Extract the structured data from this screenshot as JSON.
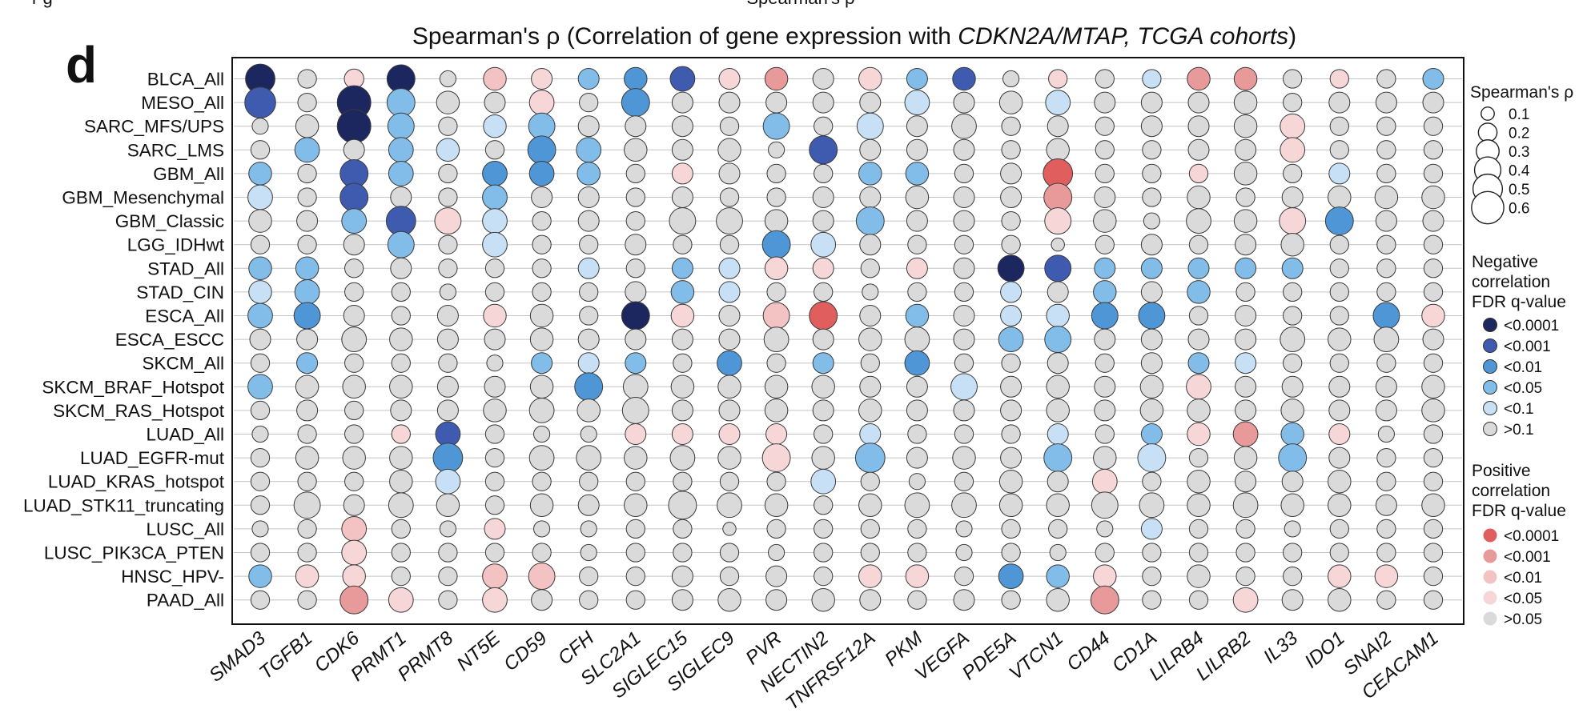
{
  "panel_letter": "d",
  "cropped_top_left": "r g",
  "cropped_top_center": "Spearman's ρ",
  "title_plain": "Spearman's ρ  (Correlation of gene expression with ",
  "title_italic": "CDKN2A/MTAP, TCGA cohorts",
  "title_close": ")",
  "size_legend": {
    "title": "Spearman's ρ",
    "items": [
      "0.1",
      "0.2",
      "0.3",
      "0.4",
      "0.5",
      "0.6"
    ],
    "values": [
      0.1,
      0.2,
      0.3,
      0.4,
      0.5,
      0.6
    ]
  },
  "neg_legend": {
    "title_lines": [
      "Negative",
      "correlation",
      "FDR q-value"
    ],
    "items": [
      "<0.0001",
      "<0.001",
      "<0.01",
      "<0.05",
      "<0.1",
      ">0.1"
    ],
    "colors": [
      "#1c2760",
      "#3f5bb0",
      "#4f96d6",
      "#82bde9",
      "#c7e0f5",
      "#dadada"
    ]
  },
  "pos_legend": {
    "title_lines": [
      "Positive",
      "correlation",
      "FDR q-value"
    ],
    "items": [
      "<0.0001",
      "<0.001",
      "<0.01",
      "<0.05",
      ">0.05"
    ],
    "colors": [
      "#e05e5e",
      "#e89a9a",
      "#f3c3c3",
      "#f6d6d6",
      "#dadada"
    ]
  },
  "chart_data": {
    "type": "bubble-matrix",
    "title": "Spearman's ρ (Correlation of gene expression with CDKN2A/MTAP, TCGA cohorts)",
    "size_encoding": "|Spearman's ρ|",
    "color_encoding": "FDR q-value bin by direction of correlation",
    "rows": [
      "BLCA_All",
      "MESO_All",
      "SARC_MFS/UPS",
      "SARC_LMS",
      "GBM_All",
      "GBM_Mesenchymal",
      "GBM_Classic",
      "LGG_IDHwt",
      "STAD_All",
      "STAD_CIN",
      "ESCA_All",
      "ESCA_ESCC",
      "SKCM_All",
      "SKCM_BRAF_Hotspot",
      "SKCM_RAS_Hotspot",
      "LUAD_All",
      "LUAD_EGFR-mut",
      "LUAD_KRAS_hotspot",
      "LUAD_STK11_truncating",
      "LUSC_All",
      "LUSC_PIK3CA_PTEN",
      "HNSC_HPV-",
      "PAAD_All"
    ],
    "columns": [
      "SMAD3",
      "TGFB1",
      "CDK6",
      "PRMT1",
      "PRMT8",
      "NT5E",
      "CD59",
      "CFH",
      "SLC2A1",
      "SIGLEC15",
      "SIGLEC9",
      "PVR",
      "NECTIN2",
      "TNFRSF12A",
      "PKM",
      "VEGFA",
      "PDE5A",
      "VTCN1",
      "CD44",
      "CD1A",
      "LILRB4",
      "LILRB2",
      "IL33",
      "IDO1",
      "SNAI2",
      "CEACAM1"
    ],
    "color_codes": {
      "n0": "negative, q<0.0001",
      "n1": "negative, q<0.001",
      "n2": "negative, q<0.01",
      "n3": "negative, q<0.05",
      "n4": "negative, q<0.1",
      "g": "not significant",
      "p0": "positive, q<0.0001",
      "p1": "positive, q<0.001",
      "p2": "positive, q<0.01",
      "p3": "positive, q<0.05"
    },
    "rho_abs": [
      [
        0.5,
        0.2,
        0.22,
        0.45,
        0.15,
        0.3,
        0.25,
        0.25,
        0.3,
        0.35,
        0.25,
        0.3,
        0.25,
        0.3,
        0.25,
        0.3,
        0.15,
        0.2,
        0.2,
        0.2,
        0.3,
        0.3,
        0.2,
        0.2,
        0.2,
        0.25
      ],
      [
        0.55,
        0.2,
        0.65,
        0.45,
        0.3,
        0.25,
        0.35,
        0.2,
        0.45,
        0.25,
        0.25,
        0.25,
        0.25,
        0.25,
        0.35,
        0.25,
        0.3,
        0.35,
        0.25,
        0.25,
        0.25,
        0.3,
        0.2,
        0.25,
        0.25,
        0.25
      ],
      [
        0.15,
        0.3,
        0.65,
        0.4,
        0.2,
        0.3,
        0.4,
        0.25,
        0.25,
        0.25,
        0.2,
        0.4,
        0.2,
        0.4,
        0.25,
        0.35,
        0.2,
        0.25,
        0.2,
        0.25,
        0.25,
        0.3,
        0.35,
        0.2,
        0.2,
        0.2
      ],
      [
        0.2,
        0.35,
        0.25,
        0.35,
        0.3,
        0.2,
        0.45,
        0.35,
        0.3,
        0.25,
        0.3,
        0.15,
        0.45,
        0.25,
        0.25,
        0.25,
        0.2,
        0.3,
        0.2,
        0.2,
        0.25,
        0.25,
        0.35,
        0.2,
        0.2,
        0.2
      ],
      [
        0.3,
        0.2,
        0.45,
        0.35,
        0.2,
        0.35,
        0.35,
        0.3,
        0.2,
        0.25,
        0.25,
        0.2,
        0.2,
        0.3,
        0.3,
        0.2,
        0.25,
        0.5,
        0.2,
        0.2,
        0.2,
        0.3,
        0.2,
        0.25,
        0.2,
        0.2
      ],
      [
        0.35,
        0.2,
        0.45,
        0.25,
        0.2,
        0.35,
        0.25,
        0.25,
        0.2,
        0.25,
        0.2,
        0.2,
        0.25,
        0.25,
        0.3,
        0.25,
        0.25,
        0.45,
        0.25,
        0.2,
        0.3,
        0.2,
        0.25,
        0.3,
        0.3,
        0.3
      ],
      [
        0.3,
        0.25,
        0.35,
        0.5,
        0.4,
        0.35,
        0.2,
        0.25,
        0.2,
        0.4,
        0.4,
        0.3,
        0.25,
        0.45,
        0.25,
        0.25,
        0.2,
        0.4,
        0.3,
        0.15,
        0.35,
        0.3,
        0.4,
        0.45,
        0.25,
        0.25
      ],
      [
        0.2,
        0.2,
        0.25,
        0.4,
        0.2,
        0.35,
        0.2,
        0.2,
        0.25,
        0.2,
        0.2,
        0.45,
        0.35,
        0.25,
        0.2,
        0.2,
        0.2,
        0.1,
        0.2,
        0.25,
        0.2,
        0.25,
        0.3,
        0.2,
        0.2,
        0.2
      ],
      [
        0.3,
        0.3,
        0.2,
        0.25,
        0.2,
        0.2,
        0.2,
        0.25,
        0.2,
        0.25,
        0.25,
        0.3,
        0.25,
        0.2,
        0.25,
        0.25,
        0.4,
        0.4,
        0.25,
        0.25,
        0.25,
        0.25,
        0.25,
        0.2,
        0.2,
        0.2
      ],
      [
        0.3,
        0.35,
        0.2,
        0.2,
        0.15,
        0.2,
        0.2,
        0.2,
        0.25,
        0.3,
        0.25,
        0.2,
        0.2,
        0.15,
        0.2,
        0.2,
        0.25,
        0.25,
        0.3,
        0.25,
        0.3,
        0.2,
        0.2,
        0.2,
        0.2,
        0.2
      ],
      [
        0.35,
        0.4,
        0.25,
        0.2,
        0.25,
        0.3,
        0.3,
        0.2,
        0.45,
        0.3,
        0.25,
        0.4,
        0.45,
        0.25,
        0.3,
        0.25,
        0.25,
        0.3,
        0.4,
        0.4,
        0.2,
        0.25,
        0.2,
        0.2,
        0.4,
        0.3
      ],
      [
        0.25,
        0.25,
        0.35,
        0.3,
        0.25,
        0.25,
        0.3,
        0.25,
        0.25,
        0.25,
        0.25,
        0.35,
        0.25,
        0.3,
        0.35,
        0.25,
        0.35,
        0.4,
        0.25,
        0.25,
        0.25,
        0.25,
        0.35,
        0.3,
        0.35,
        0.25
      ],
      [
        0.2,
        0.25,
        0.2,
        0.2,
        0.2,
        0.15,
        0.25,
        0.25,
        0.25,
        0.2,
        0.35,
        0.2,
        0.25,
        0.2,
        0.35,
        0.2,
        0.2,
        0.25,
        0.2,
        0.25,
        0.25,
        0.25,
        0.2,
        0.2,
        0.2,
        0.2
      ],
      [
        0.35,
        0.3,
        0.3,
        0.3,
        0.25,
        0.25,
        0.3,
        0.45,
        0.35,
        0.3,
        0.3,
        0.3,
        0.3,
        0.25,
        0.25,
        0.4,
        0.25,
        0.3,
        0.25,
        0.3,
        0.35,
        0.25,
        0.25,
        0.25,
        0.25,
        0.3
      ],
      [
        0.2,
        0.25,
        0.2,
        0.25,
        0.25,
        0.3,
        0.35,
        0.3,
        0.4,
        0.25,
        0.25,
        0.3,
        0.25,
        0.3,
        0.25,
        0.25,
        0.25,
        0.3,
        0.25,
        0.3,
        0.3,
        0.25,
        0.3,
        0.25,
        0.25,
        0.3
      ],
      [
        0.15,
        0.2,
        0.2,
        0.2,
        0.35,
        0.2,
        0.15,
        0.15,
        0.25,
        0.25,
        0.25,
        0.25,
        0.2,
        0.25,
        0.2,
        0.2,
        0.2,
        0.25,
        0.2,
        0.25,
        0.3,
        0.35,
        0.3,
        0.25,
        0.15,
        0.2
      ],
      [
        0.2,
        0.3,
        0.3,
        0.3,
        0.5,
        0.2,
        0.35,
        0.35,
        0.3,
        0.35,
        0.3,
        0.45,
        0.3,
        0.5,
        0.25,
        0.3,
        0.25,
        0.45,
        0.3,
        0.45,
        0.2,
        0.3,
        0.45,
        0.25,
        0.2,
        0.2
      ],
      [
        0.2,
        0.2,
        0.2,
        0.3,
        0.35,
        0.2,
        0.2,
        0.2,
        0.2,
        0.2,
        0.2,
        0.2,
        0.35,
        0.2,
        0.15,
        0.2,
        0.3,
        0.25,
        0.35,
        0.2,
        0.3,
        0.25,
        0.25,
        0.3,
        0.2,
        0.2
      ],
      [
        0.2,
        0.4,
        0.25,
        0.35,
        0.3,
        0.2,
        0.3,
        0.25,
        0.3,
        0.45,
        0.35,
        0.3,
        0.2,
        0.3,
        0.35,
        0.35,
        0.3,
        0.3,
        0.4,
        0.35,
        0.3,
        0.35,
        0.3,
        0.3,
        0.25,
        0.3
      ],
      [
        0.15,
        0.2,
        0.35,
        0.2,
        0.15,
        0.25,
        0.15,
        0.15,
        0.2,
        0.2,
        0.1,
        0.2,
        0.2,
        0.2,
        0.2,
        0.15,
        0.2,
        0.2,
        0.15,
        0.25,
        0.2,
        0.2,
        0.15,
        0.2,
        0.2,
        0.2
      ],
      [
        0.2,
        0.2,
        0.35,
        0.2,
        0.2,
        0.2,
        0.2,
        0.15,
        0.2,
        0.2,
        0.2,
        0.15,
        0.2,
        0.2,
        0.2,
        0.15,
        0.2,
        0.15,
        0.2,
        0.2,
        0.2,
        0.2,
        0.2,
        0.2,
        0.2,
        0.2
      ],
      [
        0.3,
        0.3,
        0.3,
        0.2,
        0.2,
        0.35,
        0.4,
        0.2,
        0.2,
        0.25,
        0.2,
        0.25,
        0.2,
        0.3,
        0.3,
        0.2,
        0.35,
        0.3,
        0.3,
        0.2,
        0.3,
        0.2,
        0.2,
        0.3,
        0.3,
        0.2
      ],
      [
        0.2,
        0.2,
        0.45,
        0.35,
        0.2,
        0.35,
        0.25,
        0.2,
        0.2,
        0.25,
        0.3,
        0.25,
        0.3,
        0.25,
        0.2,
        0.25,
        0.2,
        0.3,
        0.45,
        0.2,
        0.2,
        0.35,
        0.25,
        0.3,
        0.2,
        0.2
      ]
    ],
    "color": [
      [
        "n0",
        "g",
        "p3",
        "n0",
        "g",
        "p2",
        "p3",
        "n3",
        "n2",
        "n1",
        "p3",
        "p1",
        "g",
        "p3",
        "n3",
        "n1",
        "g",
        "p3",
        "g",
        "n4",
        "p1",
        "p1",
        "g",
        "p3",
        "g",
        "n3"
      ],
      [
        "n1",
        "g",
        "n0",
        "n3",
        "g",
        "g",
        "p3",
        "g",
        "n2",
        "g",
        "g",
        "g",
        "g",
        "g",
        "n4",
        "g",
        "g",
        "n4",
        "g",
        "g",
        "g",
        "g",
        "g",
        "g",
        "g",
        "g"
      ],
      [
        "g",
        "g",
        "n0",
        "n3",
        "g",
        "n4",
        "n3",
        "g",
        "g",
        "g",
        "g",
        "n3",
        "g",
        "n4",
        "g",
        "g",
        "g",
        "g",
        "g",
        "g",
        "g",
        "g",
        "p3",
        "g",
        "g",
        "g"
      ],
      [
        "g",
        "n3",
        "g",
        "n3",
        "n4",
        "g",
        "n2",
        "n3",
        "g",
        "g",
        "g",
        "g",
        "n1",
        "g",
        "g",
        "g",
        "g",
        "g",
        "g",
        "g",
        "g",
        "g",
        "p3",
        "g",
        "g",
        "g"
      ],
      [
        "n3",
        "g",
        "n1",
        "n3",
        "g",
        "n2",
        "n2",
        "n3",
        "g",
        "p3",
        "g",
        "g",
        "g",
        "n3",
        "n3",
        "g",
        "g",
        "p0",
        "g",
        "g",
        "p3",
        "g",
        "g",
        "n4",
        "g",
        "g"
      ],
      [
        "n4",
        "g",
        "n1",
        "g",
        "g",
        "n3",
        "g",
        "g",
        "g",
        "g",
        "g",
        "g",
        "g",
        "g",
        "g",
        "g",
        "g",
        "p1",
        "g",
        "g",
        "g",
        "g",
        "g",
        "g",
        "g",
        "g"
      ],
      [
        "g",
        "g",
        "n3",
        "n1",
        "p3",
        "n4",
        "g",
        "g",
        "g",
        "g",
        "g",
        "g",
        "g",
        "n3",
        "g",
        "g",
        "g",
        "p3",
        "g",
        "g",
        "g",
        "g",
        "p3",
        "n2",
        "g",
        "g"
      ],
      [
        "g",
        "g",
        "g",
        "n3",
        "g",
        "n4",
        "g",
        "g",
        "g",
        "g",
        "g",
        "n2",
        "n4",
        "g",
        "g",
        "g",
        "g",
        "g",
        "g",
        "g",
        "g",
        "g",
        "g",
        "g",
        "g",
        "g"
      ],
      [
        "n3",
        "n3",
        "g",
        "g",
        "g",
        "g",
        "g",
        "n4",
        "g",
        "n3",
        "n4",
        "p3",
        "p3",
        "g",
        "p3",
        "g",
        "n0",
        "n1",
        "n3",
        "n3",
        "n3",
        "n3",
        "n3",
        "g",
        "g",
        "g"
      ],
      [
        "n4",
        "n3",
        "g",
        "g",
        "g",
        "g",
        "g",
        "g",
        "g",
        "n3",
        "n4",
        "g",
        "g",
        "g",
        "g",
        "g",
        "n4",
        "g",
        "n3",
        "g",
        "n3",
        "g",
        "g",
        "g",
        "g",
        "g"
      ],
      [
        "n3",
        "n2",
        "g",
        "g",
        "g",
        "p3",
        "g",
        "g",
        "n0",
        "p3",
        "g",
        "p2",
        "p0",
        "g",
        "n3",
        "g",
        "n4",
        "n4",
        "n2",
        "n2",
        "g",
        "g",
        "g",
        "g",
        "n2",
        "p3"
      ],
      [
        "g",
        "g",
        "g",
        "g",
        "g",
        "g",
        "g",
        "g",
        "g",
        "g",
        "g",
        "g",
        "g",
        "g",
        "g",
        "g",
        "n3",
        "n3",
        "g",
        "g",
        "g",
        "g",
        "g",
        "g",
        "g",
        "g"
      ],
      [
        "g",
        "n3",
        "g",
        "g",
        "g",
        "g",
        "n3",
        "n4",
        "n3",
        "g",
        "n2",
        "g",
        "n3",
        "g",
        "n2",
        "g",
        "g",
        "g",
        "g",
        "g",
        "n3",
        "n4",
        "g",
        "g",
        "g",
        "g"
      ],
      [
        "n3",
        "g",
        "g",
        "g",
        "g",
        "g",
        "g",
        "n2",
        "g",
        "g",
        "g",
        "g",
        "g",
        "g",
        "g",
        "n4",
        "g",
        "g",
        "g",
        "g",
        "p3",
        "g",
        "g",
        "g",
        "g",
        "g"
      ],
      [
        "g",
        "g",
        "g",
        "g",
        "g",
        "g",
        "g",
        "g",
        "g",
        "g",
        "g",
        "g",
        "g",
        "g",
        "g",
        "g",
        "g",
        "g",
        "g",
        "g",
        "g",
        "g",
        "g",
        "g",
        "g",
        "g"
      ],
      [
        "g",
        "g",
        "g",
        "p3",
        "n1",
        "g",
        "g",
        "g",
        "p3",
        "p3",
        "p3",
        "p3",
        "g",
        "n4",
        "g",
        "g",
        "g",
        "n4",
        "g",
        "n3",
        "p3",
        "p1",
        "n3",
        "p3",
        "g",
        "g"
      ],
      [
        "g",
        "g",
        "g",
        "g",
        "n2",
        "g",
        "g",
        "g",
        "g",
        "g",
        "g",
        "p3",
        "g",
        "n3",
        "g",
        "g",
        "g",
        "n3",
        "g",
        "n4",
        "g",
        "g",
        "n3",
        "g",
        "g",
        "g"
      ],
      [
        "g",
        "g",
        "g",
        "g",
        "n4",
        "g",
        "g",
        "g",
        "g",
        "g",
        "g",
        "g",
        "n4",
        "g",
        "g",
        "g",
        "g",
        "g",
        "p3",
        "g",
        "g",
        "g",
        "g",
        "g",
        "g",
        "g"
      ],
      [
        "g",
        "g",
        "g",
        "g",
        "g",
        "g",
        "g",
        "g",
        "g",
        "g",
        "g",
        "g",
        "g",
        "g",
        "g",
        "g",
        "g",
        "g",
        "g",
        "g",
        "g",
        "g",
        "g",
        "g",
        "g",
        "g"
      ],
      [
        "g",
        "g",
        "p2",
        "g",
        "g",
        "p3",
        "g",
        "g",
        "g",
        "g",
        "g",
        "g",
        "g",
        "g",
        "g",
        "g",
        "g",
        "g",
        "g",
        "n4",
        "g",
        "g",
        "g",
        "g",
        "g",
        "g"
      ],
      [
        "g",
        "g",
        "p3",
        "g",
        "g",
        "g",
        "g",
        "g",
        "g",
        "g",
        "g",
        "g",
        "g",
        "g",
        "g",
        "g",
        "g",
        "g",
        "g",
        "g",
        "g",
        "g",
        "g",
        "g",
        "g",
        "g"
      ],
      [
        "n3",
        "p3",
        "p3",
        "g",
        "g",
        "p2",
        "p2",
        "g",
        "g",
        "g",
        "g",
        "g",
        "g",
        "p3",
        "p3",
        "g",
        "n2",
        "n3",
        "p3",
        "g",
        "g",
        "g",
        "g",
        "p3",
        "p3",
        "g"
      ],
      [
        "g",
        "g",
        "p1",
        "p3",
        "g",
        "p3",
        "g",
        "g",
        "g",
        "g",
        "g",
        "g",
        "g",
        "g",
        "g",
        "g",
        "g",
        "g",
        "p1",
        "g",
        "g",
        "p3",
        "g",
        "g",
        "g",
        "g"
      ]
    ]
  }
}
